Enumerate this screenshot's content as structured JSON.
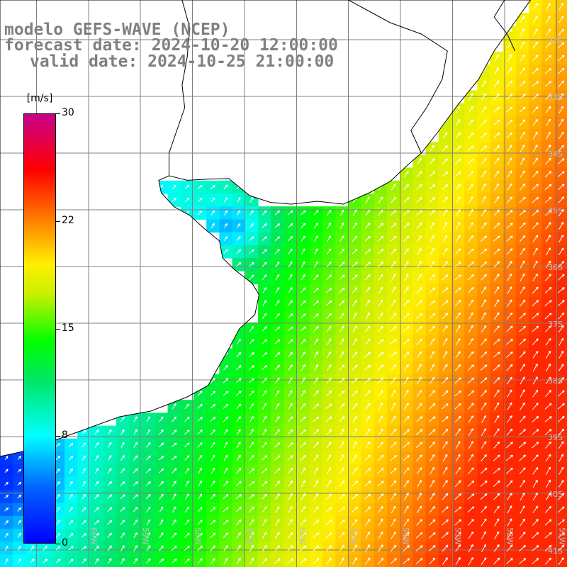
{
  "title": {
    "line1": "modelo GEFS-WAVE (NCEP)",
    "line2": "forecast date: 2024-10-20 12:00:00",
    "line3": "valid date: 2024-10-25 21:00:00"
  },
  "colorbar": {
    "unit": "[m/s]",
    "min": 0,
    "max": 30,
    "ticks": [
      {
        "label": "30",
        "value": 30
      },
      {
        "label": "22",
        "value": 22.5
      },
      {
        "label": "15",
        "value": 15
      },
      {
        "label": "8",
        "value": 7.5
      },
      {
        "label": "0",
        "value": 0
      }
    ]
  },
  "map": {
    "lon_range": [
      -61.7,
      -50.8
    ],
    "lat_range": [
      -41.3,
      -31.3
    ],
    "lat_labels": [
      "32S",
      "33S",
      "34S",
      "35S",
      "36S",
      "37S",
      "38S",
      "39S",
      "40S",
      "41S"
    ],
    "lon_labels": [
      "61W",
      "60W",
      "59W",
      "58W",
      "57W",
      "56W",
      "55W",
      "54W",
      "53W",
      "52W",
      "51W"
    ],
    "colors": {
      "coast": "#000000",
      "grid": "#808080",
      "land": "#ffffff",
      "arrow": "#ffffff"
    }
  }
}
